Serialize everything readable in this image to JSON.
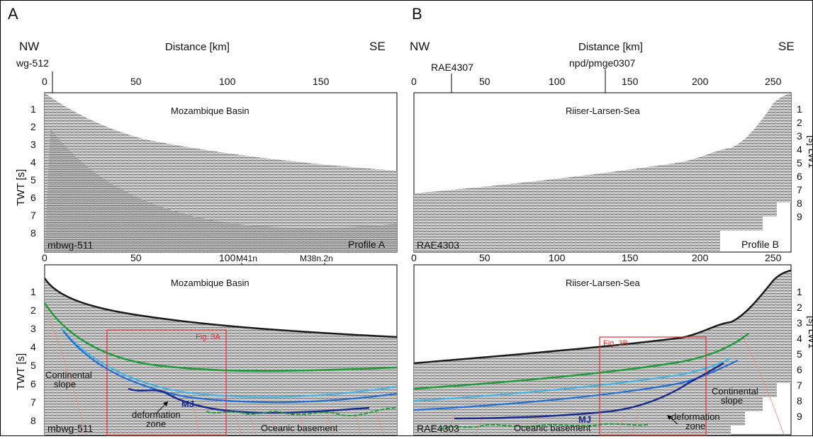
{
  "panels": {
    "A": {
      "letter": "A",
      "left_dir": "NW",
      "right_dir": "SE",
      "axis_title": "Distance [km]",
      "well": "wg-512",
      "ticks": [
        "0",
        "50",
        "100",
        "150"
      ],
      "magnetic": [
        "M41n",
        "M38n.2n"
      ],
      "top_panel": {
        "basin": "Mozambique Basin",
        "line": "mbwg-511",
        "profile": "Profile A"
      },
      "bottom_panel": {
        "basin": "Mozambique Basin",
        "line": "mbwg-511",
        "fig_ref": "Fig. 3A",
        "slope1": "Continental",
        "slope2": "slope",
        "mj": "MJ",
        "deform1": "deformation",
        "deform2": "zone",
        "basement": "Oceanic basement"
      }
    },
    "B": {
      "letter": "B",
      "left_dir": "NW",
      "right_dir": "SE",
      "axis_title": "Distance [km]",
      "markers": [
        "RAE4307",
        "npd/pmge0307"
      ],
      "ticks": [
        "0",
        "50",
        "100",
        "150",
        "200",
        "250"
      ],
      "top_panel": {
        "sea": "Riiser-Larsen-Sea",
        "line": "RAE4303",
        "profile": "Profile B"
      },
      "bottom_panel": {
        "sea": "Riiser-Larsen-Sea",
        "line": "RAE4303",
        "fig_ref": "Fig. 3B",
        "slope1": "Continental",
        "slope2": "slope",
        "mj": "MJ",
        "deform1": "deformation",
        "deform2": "zone",
        "basement": "Oceanic basement"
      }
    }
  },
  "y_axis": {
    "label_left": "TWT [s]",
    "label_right_fragment": "[s] LW1",
    "ticks": [
      "1",
      "2",
      "3",
      "4",
      "5",
      "6",
      "7",
      "8",
      "9"
    ]
  },
  "colors": {
    "seafloor": "#1a1a1a",
    "green_horizon": "#1f9a3a",
    "light_blue_horizon": "#3fb2e6",
    "blue_horizon": "#1f6ed6",
    "dark_blue_horizon": "#1a2a8c",
    "fig_box": "#e03030",
    "faults": "#e58a8a"
  }
}
